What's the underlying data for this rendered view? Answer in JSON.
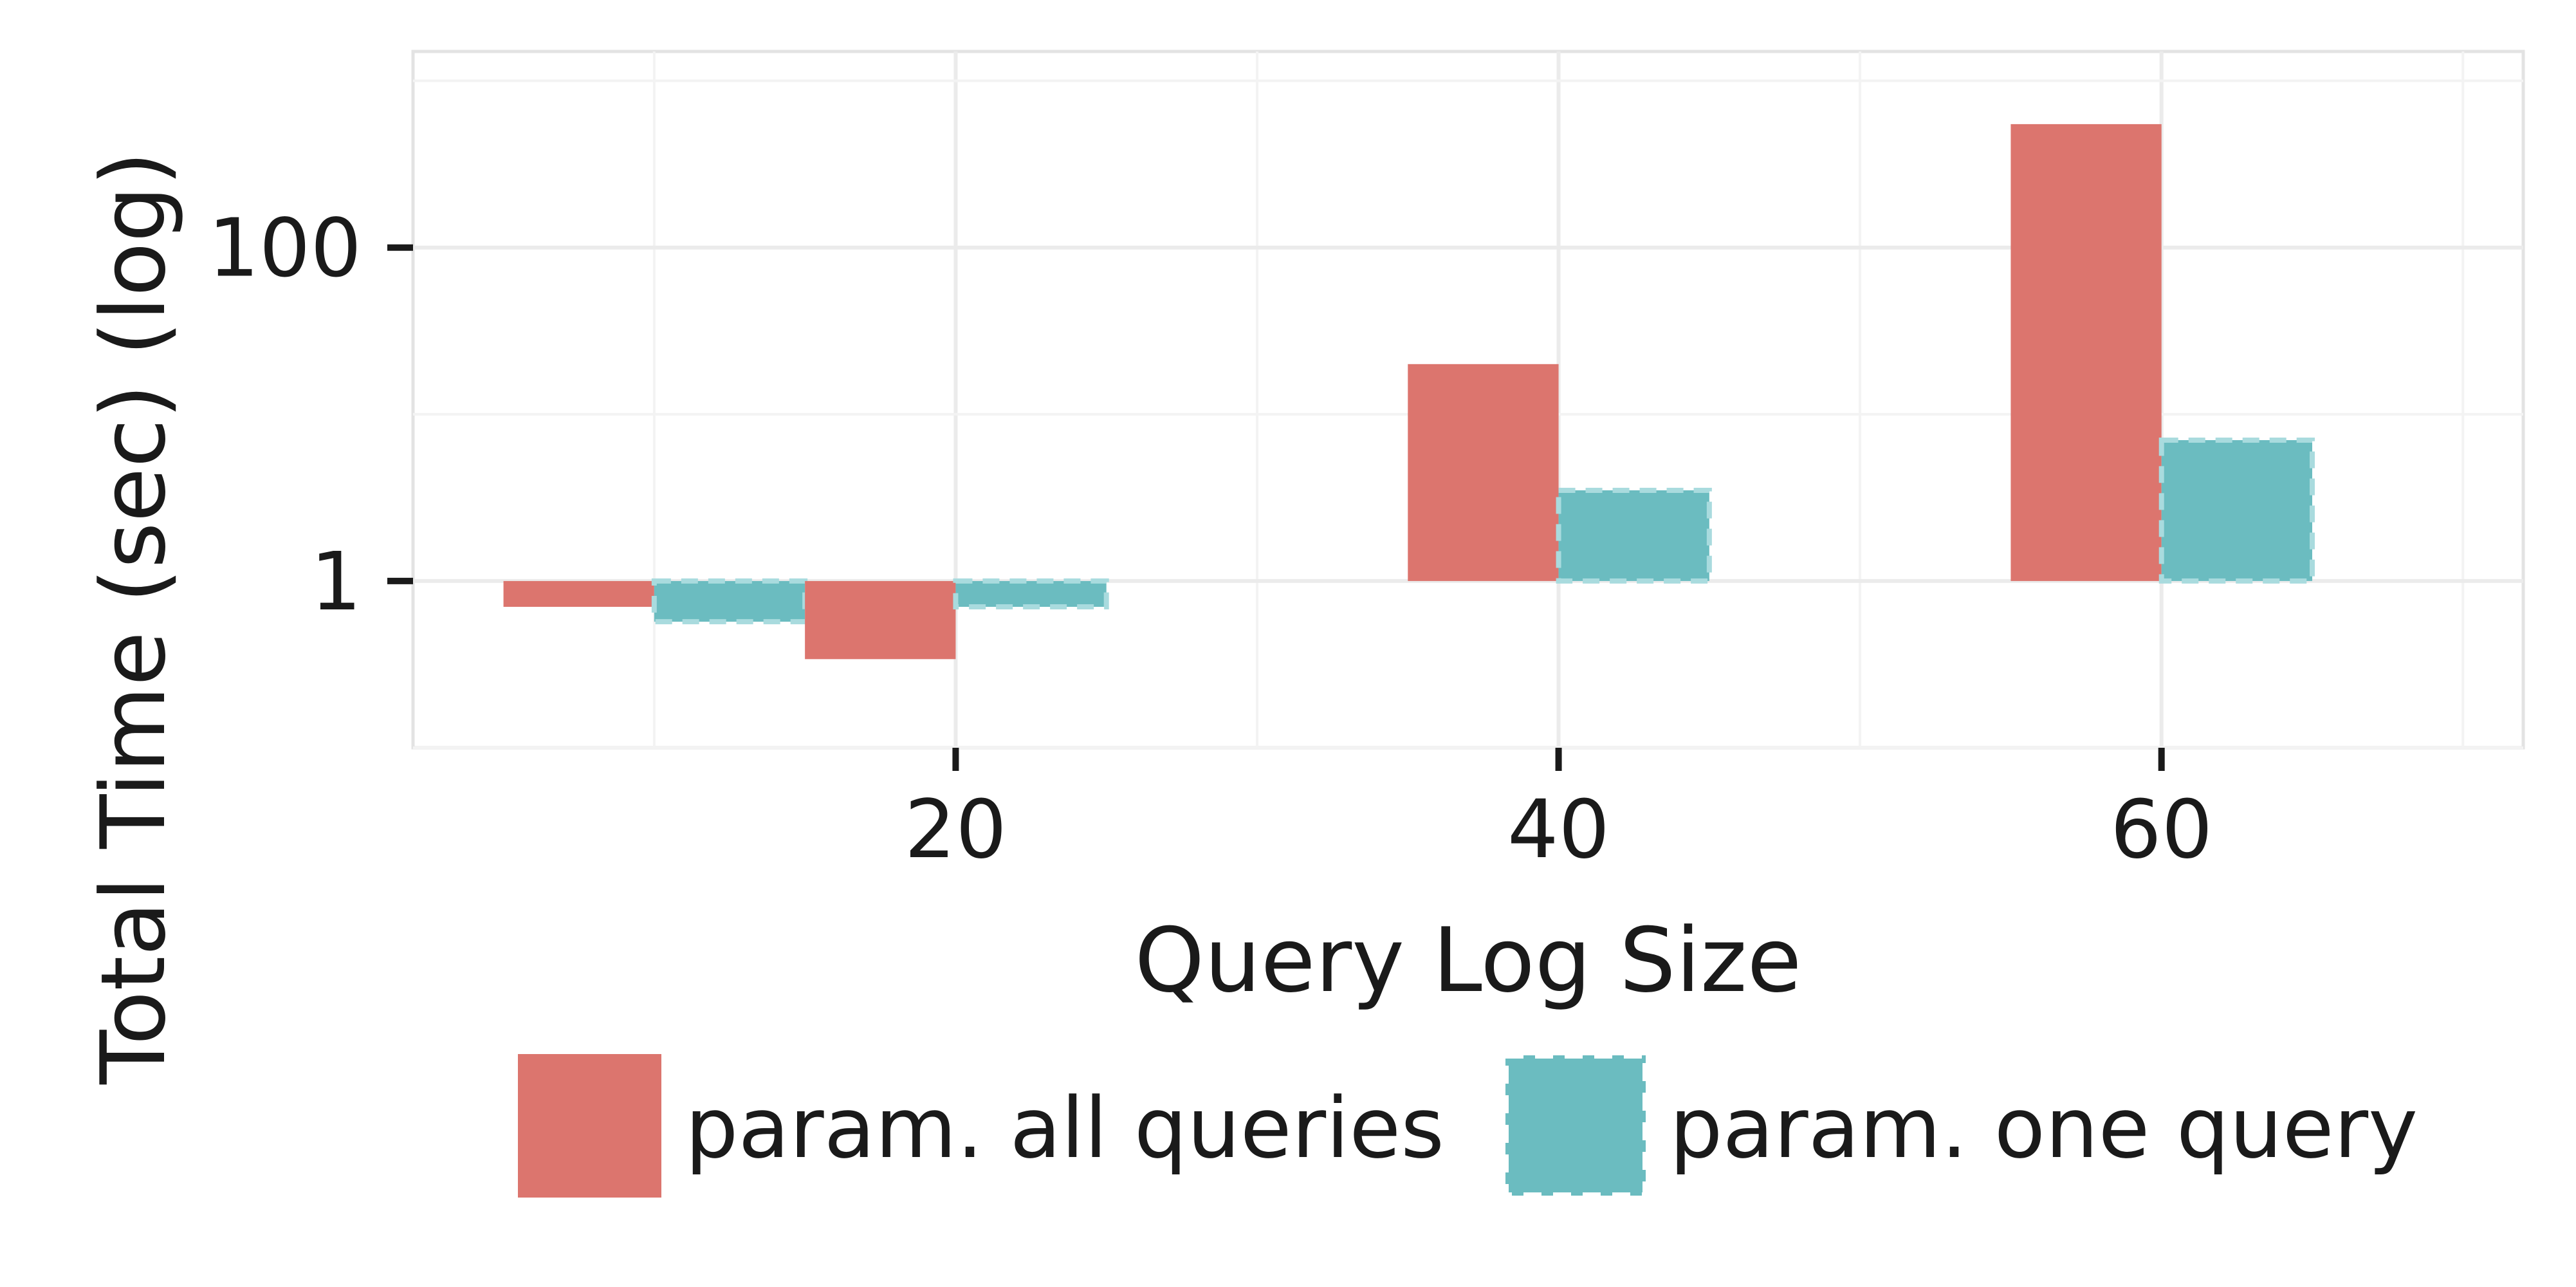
{
  "chart_data": {
    "type": "bar",
    "title": "",
    "xlabel": "Query Log Size",
    "ylabel": "Total Time (sec) (log)",
    "y_scale": "log",
    "ylim": [
      0.1,
      1500
    ],
    "xlim": [
      2,
      72
    ],
    "x_ticks": [
      {
        "value": 20,
        "label": "20"
      },
      {
        "value": 40,
        "label": "40"
      },
      {
        "value": 60,
        "label": "60"
      }
    ],
    "y_ticks": [
      {
        "value": 1,
        "label": "1"
      },
      {
        "value": 100,
        "label": "100"
      }
    ],
    "x": [
      10,
      20,
      40,
      60
    ],
    "series": [
      {
        "name": "param. all queries",
        "color": "#DC756E",
        "dashed": false,
        "values": [
          0.7,
          0.34,
          20,
          550
        ]
      },
      {
        "name": "param. one query",
        "color": "#6BBCC0",
        "dashed": true,
        "values": [
          0.57,
          0.7,
          3.5,
          7
        ]
      }
    ],
    "grid": true,
    "legend_position": "bottom"
  }
}
